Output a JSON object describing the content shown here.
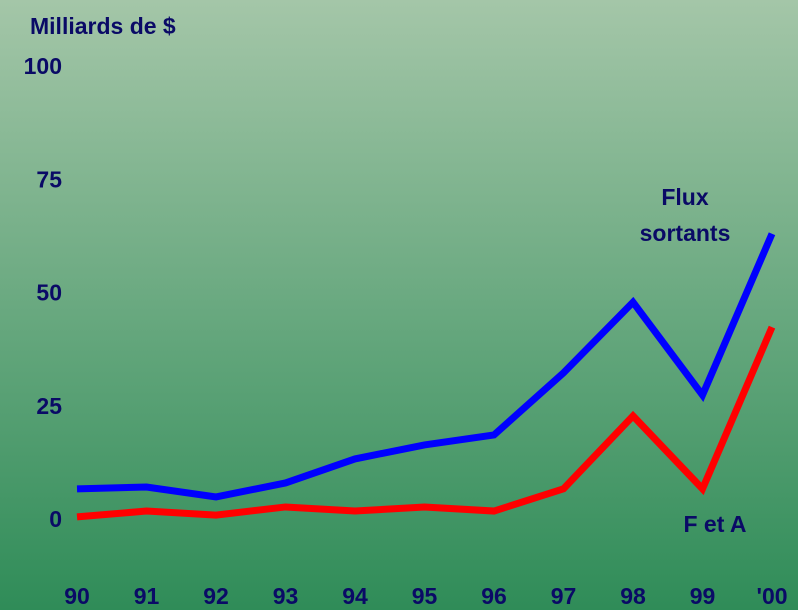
{
  "chart_data": {
    "type": "line",
    "ylabel": "Milliards de $",
    "categories": [
      "90",
      "91",
      "92",
      "93",
      "94",
      "95",
      "96",
      "97",
      "98",
      "99",
      "'00"
    ],
    "series": [
      {
        "name": "Flux sortants",
        "color": "#0000ff",
        "values": [
          7.1,
          7.5,
          5.3,
          8.4,
          13.7,
          16.8,
          19,
          32.7,
          48.3,
          27.8,
          63.4
        ]
      },
      {
        "name": "F et A",
        "color": "#ff0000",
        "values": [
          0.9,
          2.2,
          1.3,
          3.1,
          2.2,
          3.1,
          2.2,
          7.1,
          23.2,
          7.1,
          42.8
        ]
      }
    ],
    "ylim": [
      0,
      100
    ],
    "yticks": [
      0,
      25,
      50,
      75,
      100
    ],
    "grid": false
  }
}
